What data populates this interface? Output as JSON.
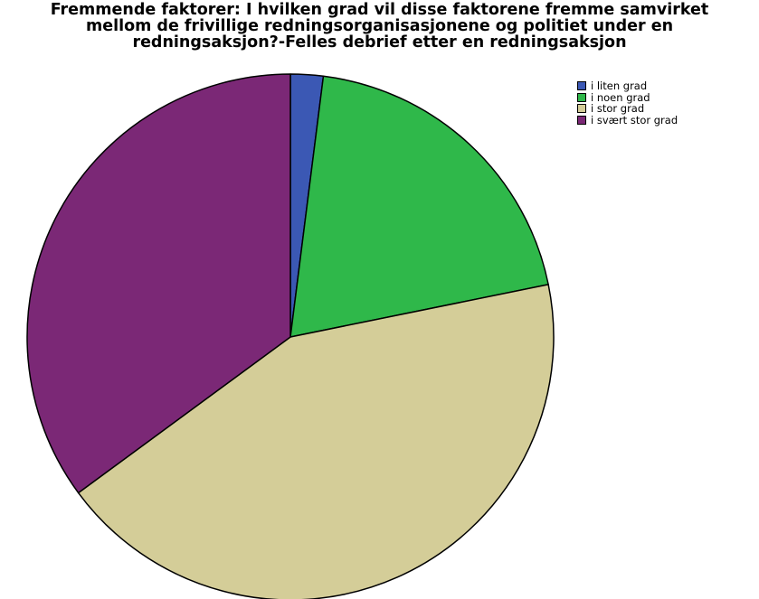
{
  "chart_data": {
    "type": "pie",
    "title_lines": [
      "Fremmende faktorer:  I hvilken grad vil disse faktorene fremme samvirket",
      "mellom de  frivillige redningsorganisasjonene og politiet under en",
      "redningsaksjon?-Felles debrief etter en redningsaksjon"
    ],
    "legend_position": "top-right",
    "slices": [
      {
        "label": "i liten grad",
        "value": 2.0,
        "color": "#3b58b4"
      },
      {
        "label": "i noen grad",
        "value": 19.8,
        "color": "#2fb84a"
      },
      {
        "label": "i stor grad",
        "value": 43.1,
        "color": "#d4cd98"
      },
      {
        "label": "i svært stor grad",
        "value": 35.1,
        "color": "#7b2876"
      }
    ]
  }
}
